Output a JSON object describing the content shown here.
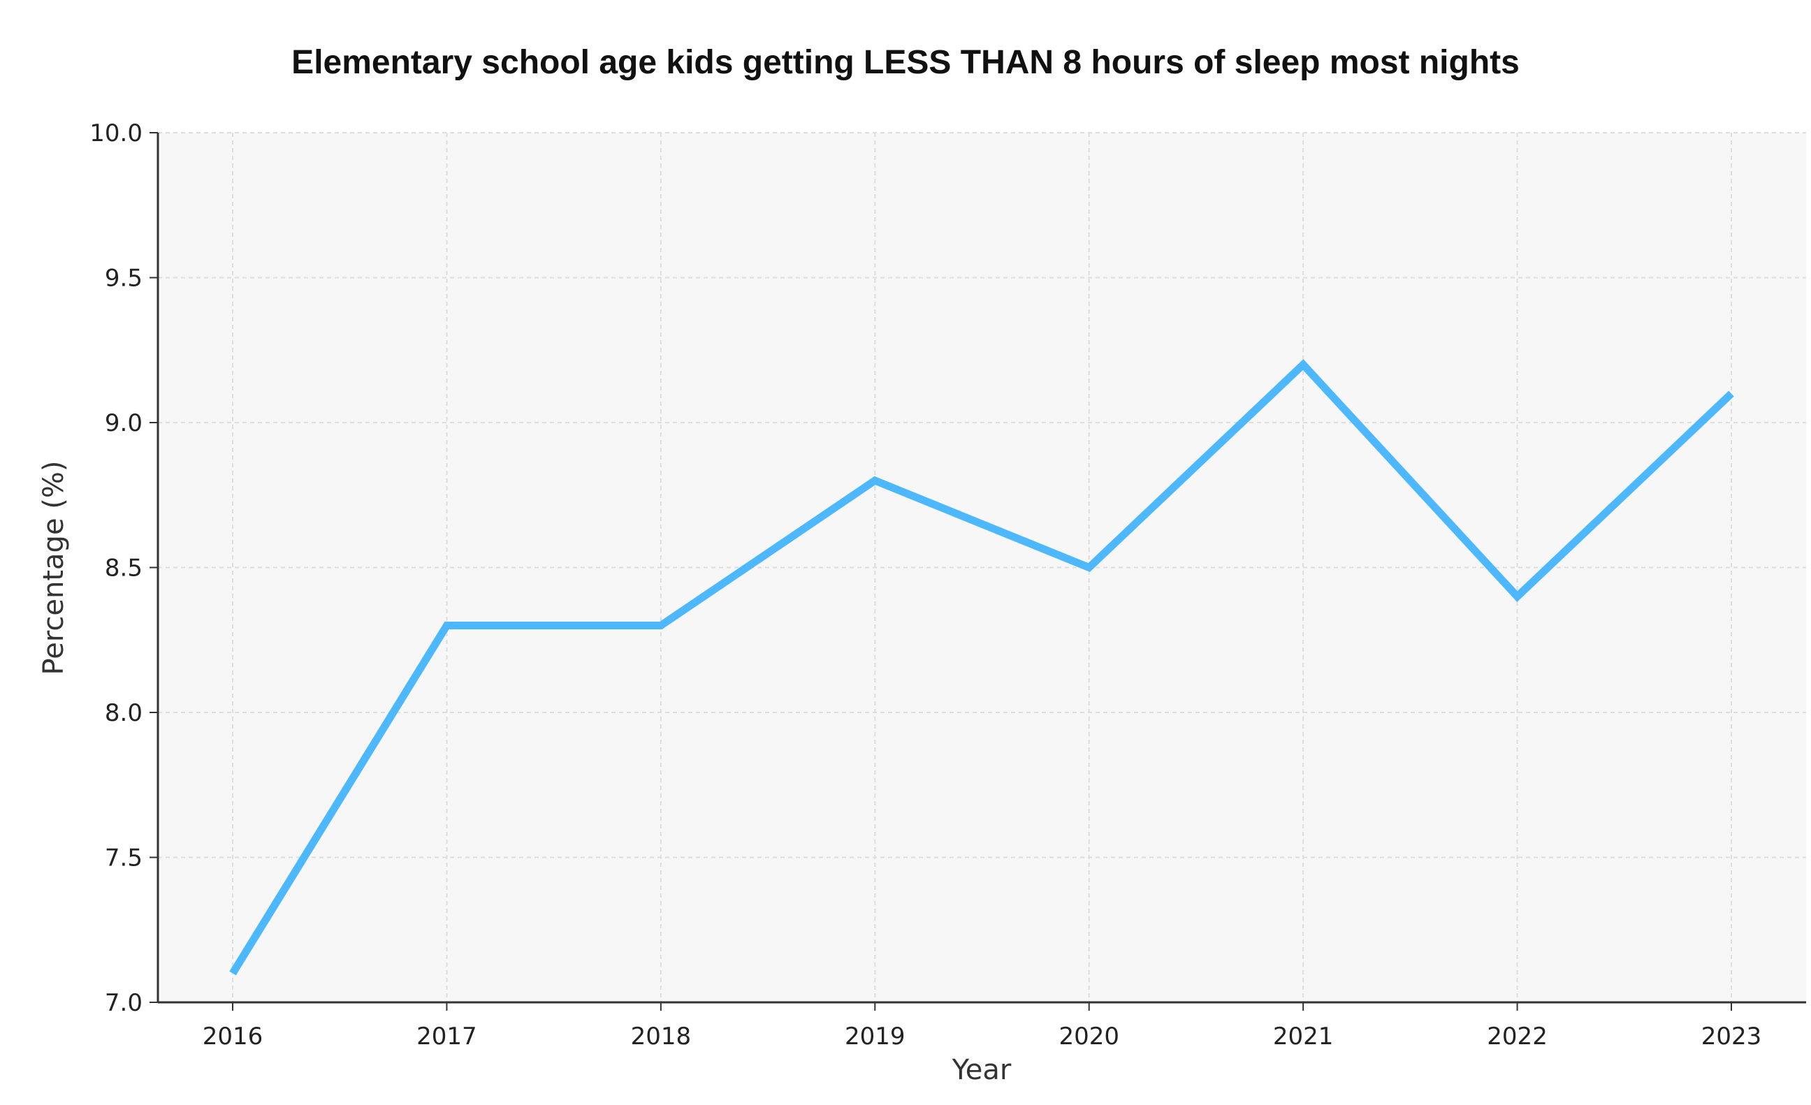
{
  "chart_data": {
    "type": "line",
    "title": "Elementary school age kids getting LESS THAN 8 hours of sleep most nights",
    "xlabel": "Year",
    "ylabel": "Percentage (%)",
    "x": [
      "2016",
      "2017",
      "2018",
      "2019",
      "2020",
      "2021",
      "2022",
      "2023"
    ],
    "series": [
      {
        "values": [
          7.1,
          8.3,
          8.3,
          8.8,
          8.5,
          9.2,
          8.4,
          9.1
        ]
      }
    ],
    "ylim": [
      7.0,
      10.0
    ],
    "yticks": [
      "7.0",
      "7.5",
      "8.0",
      "8.5",
      "9.0",
      "9.5",
      "10.0"
    ],
    "grid": true,
    "colors": {
      "line": "#4db8ff",
      "plot_background": "#f7f7f8",
      "grid": "#dddddd",
      "axis": "#333333"
    }
  }
}
